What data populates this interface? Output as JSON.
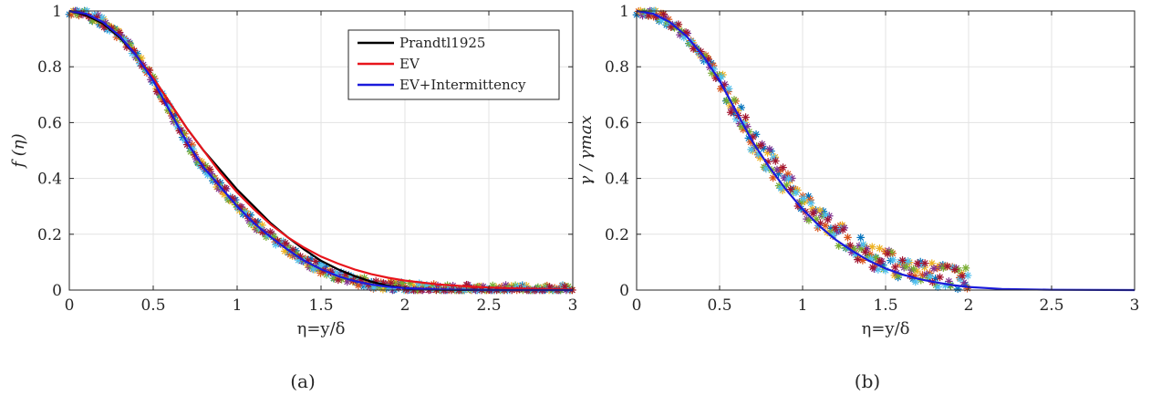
{
  "chart_data": [
    {
      "panel": "a",
      "type": "scatter",
      "caption": "(a)",
      "xlabel": "η=y/δ",
      "ylabel": "f (η)",
      "xlim": [
        0,
        3
      ],
      "ylim": [
        0,
        1
      ],
      "xticks": [
        "0",
        "0.5",
        "1",
        "1.5",
        "2",
        "2.5",
        "3"
      ],
      "yticks": [
        "0",
        "0.2",
        "0.4",
        "0.6",
        "0.8",
        "1"
      ],
      "grid": true,
      "legend_position": "top-right",
      "curves": [
        {
          "name": "Prandtl1925",
          "color": "#000000",
          "x": [
            0,
            0.1,
            0.2,
            0.3,
            0.4,
            0.5,
            0.6,
            0.7,
            0.8,
            0.9,
            1.0,
            1.1,
            1.2,
            1.3,
            1.4,
            1.5,
            1.6,
            1.7,
            1.8,
            1.9,
            2.0,
            2.1,
            2.2,
            2.5,
            3.0
          ],
          "y": [
            1.0,
            0.985,
            0.955,
            0.905,
            0.84,
            0.76,
            0.67,
            0.58,
            0.5,
            0.43,
            0.36,
            0.3,
            0.24,
            0.19,
            0.145,
            0.105,
            0.075,
            0.05,
            0.03,
            0.015,
            0.007,
            0.003,
            0.001,
            0,
            0
          ]
        },
        {
          "name": "EV",
          "color": "#e8141b",
          "x": [
            0,
            0.1,
            0.2,
            0.3,
            0.4,
            0.5,
            0.6,
            0.7,
            0.8,
            0.9,
            1.0,
            1.1,
            1.2,
            1.3,
            1.4,
            1.5,
            1.6,
            1.7,
            1.8,
            1.9,
            2.0,
            2.2,
            2.4,
            2.6,
            2.8,
            3.0
          ],
          "y": [
            1.0,
            0.99,
            0.96,
            0.91,
            0.84,
            0.76,
            0.67,
            0.58,
            0.5,
            0.42,
            0.35,
            0.29,
            0.235,
            0.19,
            0.152,
            0.12,
            0.095,
            0.074,
            0.057,
            0.044,
            0.034,
            0.02,
            0.012,
            0.007,
            0.004,
            0.002
          ]
        },
        {
          "name": "EV+Intermittency",
          "color": "#1a1adb",
          "x": [
            0,
            0.1,
            0.2,
            0.3,
            0.4,
            0.5,
            0.6,
            0.7,
            0.8,
            0.9,
            1.0,
            1.1,
            1.2,
            1.3,
            1.4,
            1.5,
            1.6,
            1.7,
            1.8,
            1.9,
            2.0,
            2.2,
            2.5,
            3.0
          ],
          "y": [
            1.0,
            0.99,
            0.96,
            0.91,
            0.84,
            0.75,
            0.64,
            0.53,
            0.44,
            0.37,
            0.3,
            0.24,
            0.19,
            0.145,
            0.105,
            0.075,
            0.05,
            0.032,
            0.02,
            0.012,
            0.007,
            0.002,
            0,
            0
          ]
        }
      ],
      "scatter_colors": [
        "#0072bd",
        "#d95319",
        "#edb120",
        "#7e2f8e",
        "#77ac30",
        "#4dbeee",
        "#a2142f"
      ]
    },
    {
      "panel": "b",
      "type": "scatter",
      "caption": "(b)",
      "xlabel": "η=y/δ",
      "ylabel": "γ / γmax",
      "xlim": [
        0,
        3
      ],
      "ylim": [
        0,
        1
      ],
      "xticks": [
        "0",
        "0.5",
        "1",
        "1.5",
        "2",
        "2.5",
        "3"
      ],
      "yticks": [
        "0",
        "0.2",
        "0.4",
        "0.6",
        "0.8",
        "1"
      ],
      "grid": true,
      "curves": [
        {
          "color": "#1a1adb",
          "x": [
            0,
            0.1,
            0.2,
            0.3,
            0.4,
            0.5,
            0.6,
            0.7,
            0.8,
            0.9,
            1.0,
            1.1,
            1.2,
            1.3,
            1.4,
            1.5,
            1.6,
            1.7,
            1.8,
            1.9,
            2.0,
            2.2,
            2.5,
            3.0
          ],
          "y": [
            1.0,
            0.99,
            0.96,
            0.91,
            0.84,
            0.75,
            0.64,
            0.53,
            0.44,
            0.36,
            0.29,
            0.23,
            0.18,
            0.14,
            0.105,
            0.077,
            0.056,
            0.04,
            0.028,
            0.018,
            0.011,
            0.004,
            0.001,
            0
          ]
        }
      ],
      "scatter_colors": [
        "#0072bd",
        "#d95319",
        "#edb120",
        "#7e2f8e",
        "#77ac30",
        "#4dbeee",
        "#a2142f"
      ]
    }
  ]
}
